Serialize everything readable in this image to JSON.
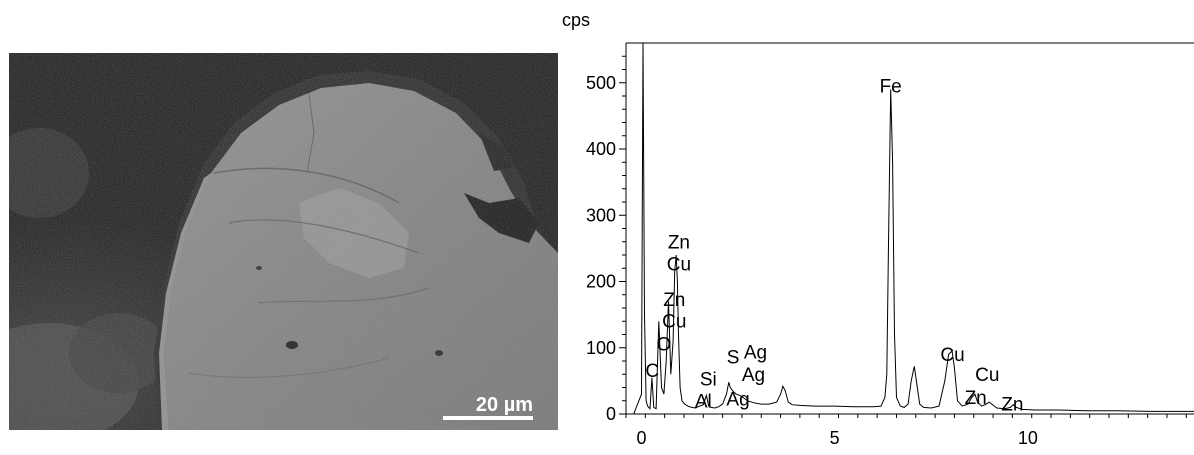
{
  "sem_image": {
    "scale_bar_label": "20 µm"
  },
  "chart_data": {
    "type": "line",
    "title": "",
    "xlabel": "",
    "ylabel": "cps",
    "xlim": [
      -0.4,
      14.3
    ],
    "ylim": [
      0,
      560
    ],
    "x_ticks": [
      0,
      5,
      10
    ],
    "y_ticks": [
      0,
      100,
      200,
      300,
      400,
      500
    ],
    "grid": false,
    "series": [
      {
        "x": [
          -0.2,
          0.0,
          0.04,
          0.08,
          0.12,
          0.16,
          0.22,
          0.27,
          0.32,
          0.38,
          0.45,
          0.52,
          0.58,
          0.64,
          0.7,
          0.76,
          0.82,
          0.86,
          0.9,
          0.93,
          0.96,
          1.0,
          1.05,
          1.12,
          1.2,
          1.3,
          1.4,
          1.5,
          1.6,
          1.68,
          1.74,
          1.8,
          1.9,
          2.0,
          2.1,
          2.2,
          2.26,
          2.3,
          2.36,
          2.45,
          2.55,
          2.65,
          2.75,
          2.9,
          3.1,
          3.3,
          3.5,
          3.6,
          3.66,
          3.72,
          3.8,
          3.9,
          4.1,
          4.5,
          5.0,
          5.5,
          6.0,
          6.2,
          6.3,
          6.35,
          6.4,
          6.45,
          6.5,
          6.55,
          6.6,
          6.7,
          6.8,
          6.9,
          6.98,
          7.06,
          7.14,
          7.2,
          7.3,
          7.5,
          7.7,
          7.85,
          7.95,
          8.04,
          8.1,
          8.18,
          8.3,
          8.45,
          8.55,
          8.63,
          8.7,
          8.8,
          8.9,
          9.0,
          9.2,
          9.4,
          9.55,
          9.62,
          9.7,
          9.85,
          10.2,
          10.8,
          11.5,
          12.3,
          13.2,
          14.3
        ],
        "y": [
          0,
          30,
          560,
          150,
          20,
          12,
          8,
          55,
          10,
          8,
          140,
          40,
          30,
          80,
          170,
          60,
          110,
          215,
          240,
          200,
          120,
          40,
          20,
          15,
          12,
          10,
          9,
          12,
          14,
          28,
          12,
          10,
          9,
          11,
          15,
          30,
          48,
          40,
          35,
          30,
          28,
          24,
          20,
          17,
          15,
          15,
          18,
          30,
          42,
          35,
          18,
          14,
          13,
          12,
          12,
          11,
          11,
          12,
          25,
          60,
          280,
          490,
          380,
          120,
          25,
          12,
          10,
          15,
          50,
          72,
          40,
          15,
          10,
          9,
          12,
          50,
          90,
          95,
          70,
          20,
          12,
          15,
          25,
          30,
          18,
          12,
          14,
          18,
          9,
          8,
          10,
          14,
          10,
          7,
          6,
          6,
          5,
          5,
          4,
          4
        ]
      }
    ],
    "annotations": [
      {
        "text": "Fe",
        "x": 6.45,
        "y": 497
      },
      {
        "text": "Zn",
        "x": 0.97,
        "y": 262
      },
      {
        "text": "Cu",
        "x": 0.97,
        "y": 229
      },
      {
        "text": "Zn",
        "x": 0.85,
        "y": 175
      },
      {
        "text": "Cu",
        "x": 0.85,
        "y": 143
      },
      {
        "text": "O",
        "x": 0.58,
        "y": 108
      },
      {
        "text": "C",
        "x": 0.28,
        "y": 68
      },
      {
        "text": "Si",
        "x": 1.73,
        "y": 55
      },
      {
        "text": "Al",
        "x": 1.6,
        "y": 22
      },
      {
        "text": "S",
        "x": 2.37,
        "y": 88
      },
      {
        "text": "Ag",
        "x": 2.95,
        "y": 96
      },
      {
        "text": "Ag",
        "x": 2.9,
        "y": 62
      },
      {
        "text": "Ag",
        "x": 2.5,
        "y": 25
      },
      {
        "text": "Cu",
        "x": 8.05,
        "y": 92
      },
      {
        "text": "Cu",
        "x": 8.95,
        "y": 62
      },
      {
        "text": "Zn",
        "x": 8.65,
        "y": 27
      },
      {
        "text": "Zn",
        "x": 9.6,
        "y": 17
      }
    ],
    "colors": {
      "line": "#000000",
      "axis": "#000000"
    }
  }
}
